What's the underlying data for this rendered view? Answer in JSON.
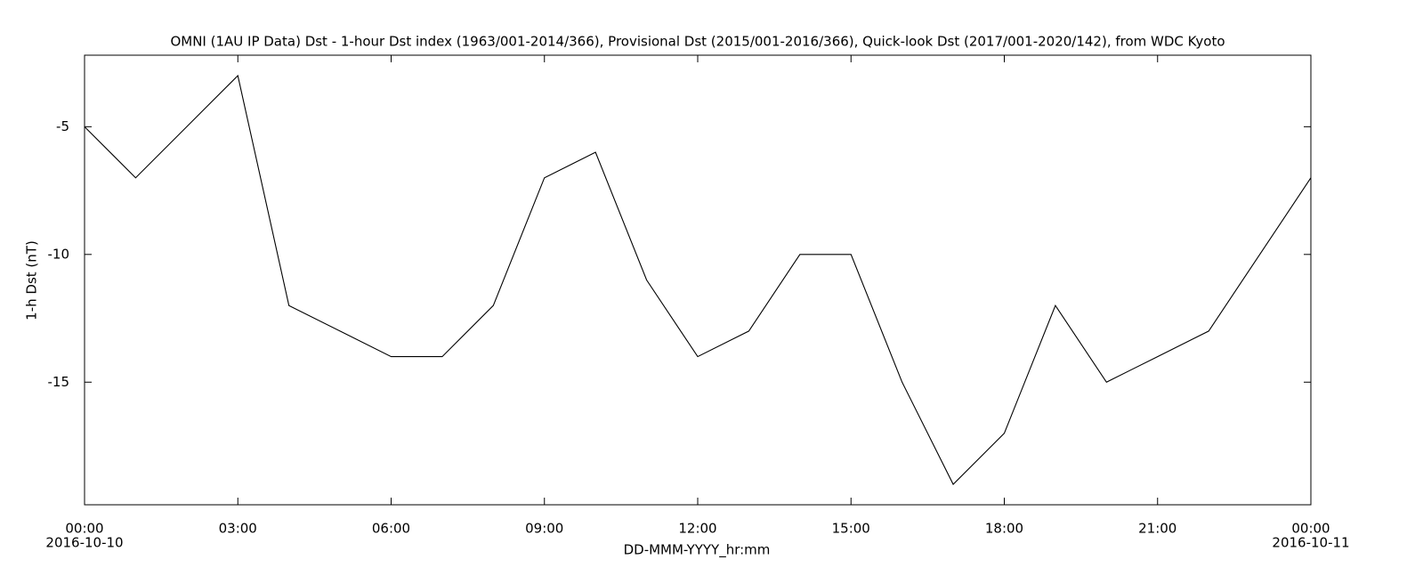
{
  "chart_data": {
    "type": "line",
    "title": "OMNI (1AU IP Data)  Dst - 1-hour Dst index (1963/001-2014/366), Provisional Dst (2015/001-2016/366), Quick-look Dst (2017/001-2020/142), from WDC Kyoto",
    "x_label": "DD-MMM-YYYY_hr:mm",
    "y_label": "1-h Dst (nT)",
    "x": [
      "2016-10-10 00:00",
      "2016-10-10 01:00",
      "2016-10-10 02:00",
      "2016-10-10 03:00",
      "2016-10-10 04:00",
      "2016-10-10 05:00",
      "2016-10-10 06:00",
      "2016-10-10 07:00",
      "2016-10-10 08:00",
      "2016-10-10 09:00",
      "2016-10-10 10:00",
      "2016-10-10 11:00",
      "2016-10-10 12:00",
      "2016-10-10 13:00",
      "2016-10-10 14:00",
      "2016-10-10 15:00",
      "2016-10-10 16:00",
      "2016-10-10 17:00",
      "2016-10-10 18:00",
      "2016-10-10 19:00",
      "2016-10-10 20:00",
      "2016-10-10 21:00",
      "2016-10-10 22:00",
      "2016-10-10 23:00",
      "2016-10-11 00:00"
    ],
    "values": [
      -5,
      -7,
      -5,
      -3,
      -12,
      -13,
      -14,
      -14,
      -12,
      -7,
      -6,
      -11,
      -14,
      -13,
      -10,
      -10,
      -15,
      -19,
      -17,
      -12,
      -15,
      -14,
      -13,
      -10,
      -7
    ],
    "color": "#000000",
    "xlim": [
      "2016-10-10 00:00",
      "2016-10-11 00:00"
    ],
    "xticks": [
      {
        "value": "2016-10-10 00:00",
        "label": "00:00",
        "date": "2016-10-10"
      },
      {
        "value": "2016-10-10 03:00",
        "label": "03:00"
      },
      {
        "value": "2016-10-10 06:00",
        "label": "06:00"
      },
      {
        "value": "2016-10-10 09:00",
        "label": "09:00"
      },
      {
        "value": "2016-10-10 12:00",
        "label": "12:00"
      },
      {
        "value": "2016-10-10 15:00",
        "label": "15:00"
      },
      {
        "value": "2016-10-10 18:00",
        "label": "18:00"
      },
      {
        "value": "2016-10-10 21:00",
        "label": "21:00"
      },
      {
        "value": "2016-10-11 00:00",
        "label": "00:00",
        "date": "2016-10-11"
      }
    ],
    "ylim": [
      -19.8,
      -2.2
    ],
    "yticks": [
      -5,
      -10,
      -15
    ],
    "grid": false
  }
}
